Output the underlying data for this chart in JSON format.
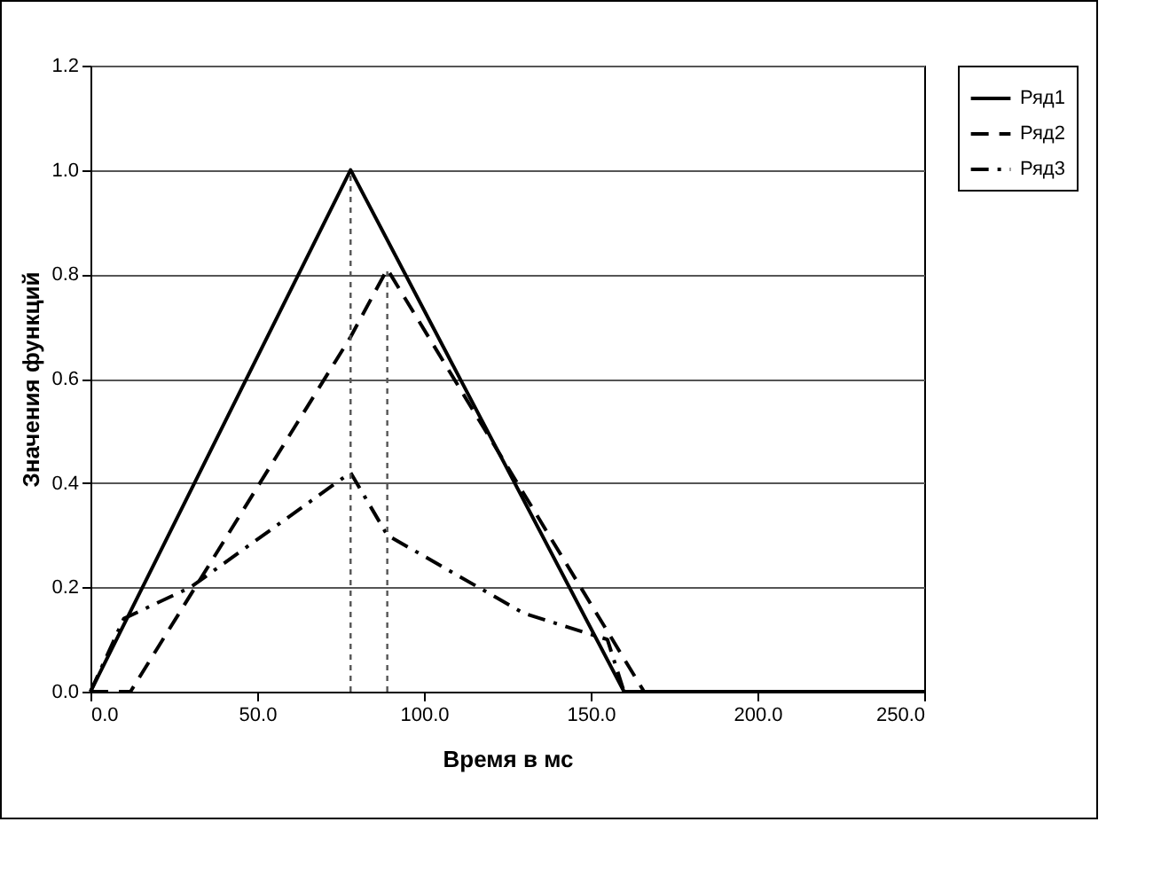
{
  "chart_data": {
    "type": "line",
    "xlabel": "Время в мс",
    "ylabel": "Значения функций",
    "xlim": [
      0,
      250
    ],
    "ylim": [
      0,
      1.2
    ],
    "xticks": [
      {
        "value": 0,
        "label": "0.0"
      },
      {
        "value": 50,
        "label": "50.0"
      },
      {
        "value": 100,
        "label": "100.0"
      },
      {
        "value": 150,
        "label": "150.0"
      },
      {
        "value": 200,
        "label": "200.0"
      },
      {
        "value": 250,
        "label": "250.0"
      }
    ],
    "yticks": [
      {
        "value": 0,
        "label": "0.0"
      },
      {
        "value": 0.2,
        "label": "0.2"
      },
      {
        "value": 0.4,
        "label": "0.4"
      },
      {
        "value": 0.6,
        "label": "0.6"
      },
      {
        "value": 0.8,
        "label": "0.8"
      },
      {
        "value": 1,
        "label": "1.0"
      },
      {
        "value": 1.2,
        "label": "1.2"
      }
    ],
    "grid": "y",
    "legend": "right",
    "series": [
      {
        "name": "Ряд1",
        "color": "#000000",
        "line_style": "solid",
        "x": [
          0,
          78,
          160,
          250
        ],
        "values": [
          0,
          1,
          0,
          0
        ]
      },
      {
        "name": "Ряд2",
        "color": "#000000",
        "line_style": "dashed",
        "x": [
          0,
          12,
          78,
          89,
          166,
          250
        ],
        "values": [
          0,
          0,
          0.68,
          0.81,
          0,
          0
        ]
      },
      {
        "name": "Ряд3",
        "color": "#000000",
        "line_style": "dashdot",
        "x": [
          0,
          10,
          30,
          78,
          89,
          130,
          155,
          160,
          250
        ],
        "values": [
          0,
          0.14,
          0.2,
          0.42,
          0.3,
          0.15,
          0.1,
          0,
          0
        ]
      },
      {
        "color": "#555555",
        "line_style": "dotted",
        "x": [
          78,
          78
        ],
        "values": [
          0,
          1
        ]
      },
      {
        "color": "#555555",
        "line_style": "dotted",
        "x": [
          89,
          89
        ],
        "values": [
          0,
          0.81
        ]
      }
    ]
  }
}
